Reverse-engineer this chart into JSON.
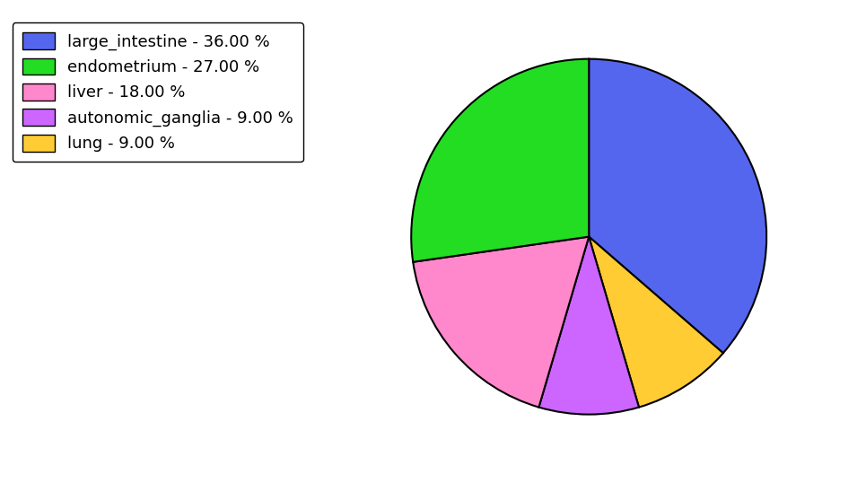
{
  "labels": [
    "large_intestine",
    "lung",
    "autonomic_ganglia",
    "liver",
    "endometrium"
  ],
  "values": [
    36.0,
    9.0,
    9.0,
    18.0,
    27.0
  ],
  "colors": [
    "#5566ee",
    "#ffcc33",
    "#cc66ff",
    "#ff88cc",
    "#22dd22"
  ],
  "legend_labels": [
    "large_intestine - 36.00 %",
    "endometrium - 27.00 %",
    "liver - 18.00 %",
    "autonomic_ganglia - 9.00 %",
    "lung - 9.00 %"
  ],
  "legend_colors": [
    "#5566ee",
    "#22dd22",
    "#ff88cc",
    "#cc66ff",
    "#ffcc33"
  ],
  "startangle": 90,
  "figsize": [
    9.65,
    5.38
  ],
  "dpi": 100,
  "legend_fontsize": 13,
  "edge_color": "black",
  "edge_width": 1.5
}
